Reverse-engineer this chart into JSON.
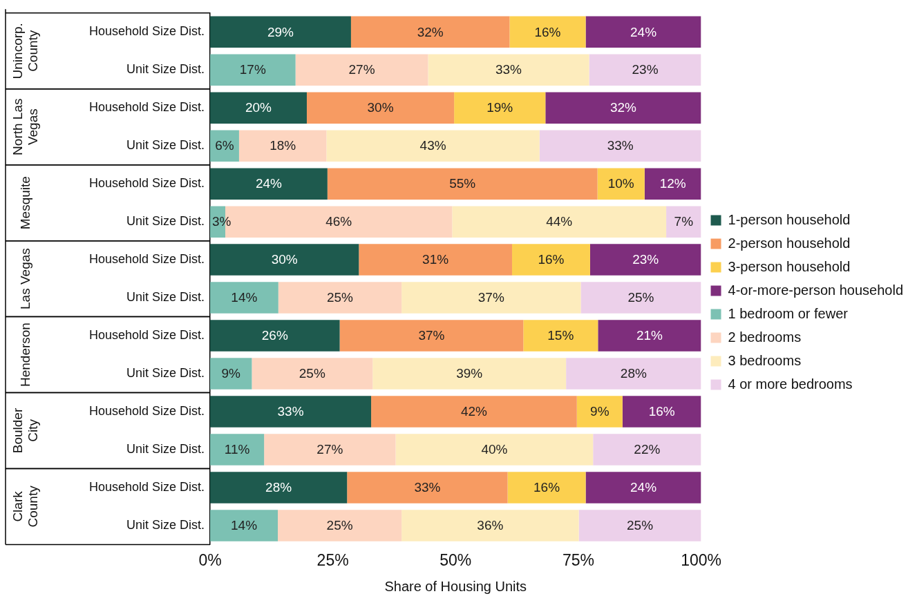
{
  "chart_data": {
    "type": "bar",
    "orientation": "horizontal",
    "stacked": true,
    "xlabel": "Share of Housing Units",
    "categories": [
      "Household Size Dist.",
      "Unit Size Dist.",
      "Household Size Dist.",
      "Unit Size Dist.",
      "Household Size Dist.",
      "Unit Size Dist.",
      "Household Size Dist.",
      "Unit Size Dist.",
      "Household Size Dist.",
      "Unit Size Dist.",
      "Household Size Dist.",
      "Unit Size Dist.",
      "Household Size Dist.",
      "Unit Size Dist."
    ],
    "annotations": [
      "Unincorp. County",
      "North Las Vegas",
      "Mesquite",
      "Las Vegas",
      "Henderson",
      "Boulder City",
      "Clark County"
    ],
    "xlim": [
      0,
      100
    ],
    "xticks": [
      {
        "value": 0,
        "label": "0%"
      },
      {
        "value": 25,
        "label": "25%"
      },
      {
        "value": 50,
        "label": "50%"
      },
      {
        "value": 75,
        "label": "75%"
      },
      {
        "value": 100,
        "label": "100%"
      }
    ],
    "legend": "right",
    "series": [
      {
        "name": "1-person household",
        "color": "#1e5a4e",
        "values": [
          28.7,
          null,
          19.7,
          null,
          23.9,
          null,
          30.3,
          null,
          26.4,
          null,
          32.8,
          null,
          27.9,
          null
        ],
        "value_labels": [
          "29%",
          null,
          "20%",
          null,
          "24%",
          null,
          "30%",
          null,
          "26%",
          null,
          "33%",
          null,
          "28%",
          null
        ]
      },
      {
        "name": "2-person household",
        "color": "#f79b62",
        "values": [
          32.3,
          null,
          30.0,
          null,
          55.0,
          null,
          31.2,
          null,
          37.4,
          null,
          41.9,
          null,
          32.7,
          null
        ],
        "value_labels": [
          "32%",
          null,
          "30%",
          null,
          "55%",
          null,
          "31%",
          null,
          "37%",
          null,
          "42%",
          null,
          "33%",
          null
        ]
      },
      {
        "name": "3-person household",
        "color": "#fcd04f",
        "values": [
          15.5,
          null,
          18.6,
          null,
          9.6,
          null,
          15.9,
          null,
          15.2,
          null,
          9.3,
          null,
          15.9,
          null
        ],
        "value_labels": [
          "16%",
          null,
          "19%",
          null,
          "10%",
          null,
          "16%",
          null,
          "15%",
          null,
          "9%",
          null,
          "16%",
          null
        ]
      },
      {
        "name": "4-or-more-person household",
        "color": "#7e2e7c",
        "values": [
          23.5,
          null,
          31.7,
          null,
          11.5,
          null,
          22.6,
          null,
          21.0,
          null,
          16.0,
          null,
          23.5,
          null
        ],
        "value_labels": [
          "24%",
          null,
          "32%",
          null,
          "12%",
          null,
          "23%",
          null,
          "21%",
          null,
          "16%",
          null,
          "24%",
          null
        ]
      },
      {
        "name": "1 bedroom or fewer",
        "color": "#7cc1b3",
        "values": [
          null,
          17.4,
          null,
          5.9,
          null,
          3.1,
          null,
          13.9,
          null,
          8.5,
          null,
          11.0,
          null,
          13.8
        ],
        "value_labels": [
          null,
          "17%",
          null,
          "6%",
          null,
          "3%",
          null,
          "14%",
          null,
          "9%",
          null,
          "11%",
          null,
          "14%"
        ]
      },
      {
        "name": "2 bedrooms",
        "color": "#fdd5c0",
        "values": [
          null,
          27.0,
          null,
          17.8,
          null,
          46.2,
          null,
          25.1,
          null,
          24.6,
          null,
          26.8,
          null,
          25.2
        ],
        "value_labels": [
          null,
          "27%",
          null,
          "18%",
          null,
          "46%",
          null,
          "25%",
          null,
          "25%",
          null,
          "27%",
          null,
          "25%"
        ]
      },
      {
        "name": "3 bedrooms",
        "color": "#fdecbd",
        "values": [
          null,
          32.8,
          null,
          43.4,
          null,
          43.6,
          null,
          36.5,
          null,
          39.4,
          null,
          40.2,
          null,
          36.1
        ],
        "value_labels": [
          null,
          "33%",
          null,
          "43%",
          null,
          "44%",
          null,
          "37%",
          null,
          "39%",
          null,
          "40%",
          null,
          "36%"
        ]
      },
      {
        "name": "4 or more bedrooms",
        "color": "#ecd0ea",
        "values": [
          null,
          22.8,
          null,
          32.9,
          null,
          7.1,
          null,
          24.5,
          null,
          27.5,
          null,
          22.0,
          null,
          24.9
        ],
        "value_labels": [
          null,
          "23%",
          null,
          "33%",
          null,
          "7%",
          null,
          "25%",
          null,
          "28%",
          null,
          "22%",
          null,
          "25%"
        ]
      }
    ]
  }
}
